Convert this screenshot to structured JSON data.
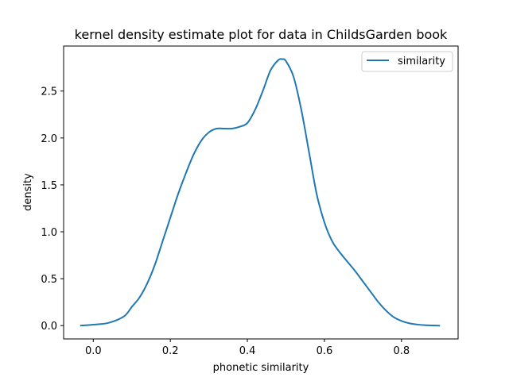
{
  "chart_data": {
    "type": "line",
    "title": "kernel density estimate plot for data in ChildsGarden book",
    "xlabel": "phonetic similarity",
    "ylabel": "density",
    "xlim": [
      -0.077,
      0.947
    ],
    "ylim": [
      -0.142,
      2.98
    ],
    "xticks": [
      0.0,
      0.2,
      0.4,
      0.6,
      0.8
    ],
    "xtick_labels": [
      "0.0",
      "0.2",
      "0.4",
      "0.6",
      "0.8"
    ],
    "yticks": [
      0.0,
      0.5,
      1.0,
      1.5,
      2.0,
      2.5
    ],
    "ytick_labels": [
      "0.0",
      "0.5",
      "1.0",
      "1.5",
      "2.0",
      "2.5"
    ],
    "grid": false,
    "legend_position": "top-right",
    "series": [
      {
        "name": "similarity",
        "color": "#1f77b4",
        "x": [
          -0.034,
          0.0,
          0.04,
          0.08,
          0.1,
          0.12,
          0.14,
          0.16,
          0.18,
          0.2,
          0.22,
          0.24,
          0.26,
          0.28,
          0.3,
          0.32,
          0.34,
          0.36,
          0.38,
          0.4,
          0.42,
          0.44,
          0.46,
          0.48,
          0.49,
          0.5,
          0.52,
          0.54,
          0.56,
          0.58,
          0.6,
          0.62,
          0.64,
          0.66,
          0.68,
          0.7,
          0.72,
          0.74,
          0.76,
          0.78,
          0.8,
          0.82,
          0.84,
          0.86,
          0.9
        ],
        "y": [
          0.0,
          0.01,
          0.03,
          0.1,
          0.2,
          0.3,
          0.45,
          0.65,
          0.9,
          1.15,
          1.4,
          1.62,
          1.82,
          1.97,
          2.06,
          2.1,
          2.1,
          2.1,
          2.12,
          2.16,
          2.3,
          2.5,
          2.72,
          2.83,
          2.84,
          2.82,
          2.65,
          2.3,
          1.85,
          1.4,
          1.1,
          0.9,
          0.78,
          0.68,
          0.58,
          0.47,
          0.36,
          0.25,
          0.16,
          0.09,
          0.05,
          0.025,
          0.012,
          0.005,
          0.0
        ]
      }
    ]
  }
}
